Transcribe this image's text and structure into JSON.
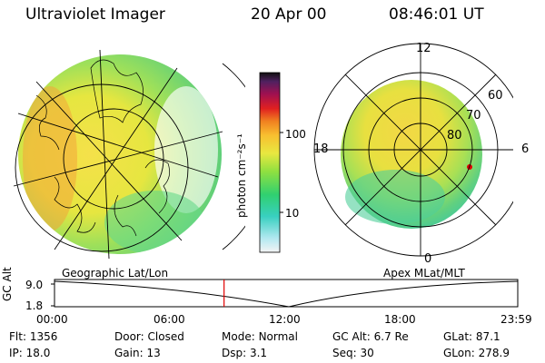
{
  "header": {
    "instrument": "Ultraviolet Imager",
    "date": "20 Apr 00",
    "time": "08:46:01 UT"
  },
  "colorbar": {
    "unit_label": "photon cm⁻²s⁻¹",
    "ticks": [
      "100",
      "10"
    ]
  },
  "polar_plot": {
    "title": "Apex MLat/MLT",
    "mlt_labels": {
      "top": "12",
      "left": "18",
      "right": "6",
      "bottom": "0"
    },
    "lat_labels": [
      "60",
      "70",
      "80"
    ]
  },
  "geo_plot": {
    "title": "Geographic Lat/Lon"
  },
  "altitude_plot": {
    "ylabel": "GC Alt",
    "yticks": [
      "9.0",
      "1.8"
    ],
    "xticks": [
      "00:00",
      "06:00",
      "12:00",
      "18:00",
      "23:59"
    ],
    "current_time_fraction": 0.366
  },
  "status": {
    "row1": [
      {
        "label": "Flt:",
        "value": "1356"
      },
      {
        "label": "Door:",
        "value": "Closed"
      },
      {
        "label": "Mode:",
        "value": "Normal"
      },
      {
        "label": "GC Alt:",
        "value": "6.7 Re"
      },
      {
        "label": "GLat:",
        "value": "87.1"
      }
    ],
    "row2": [
      {
        "label": "IP:",
        "value": "18.0"
      },
      {
        "label": "Gain:",
        "value": "13"
      },
      {
        "label": "Dsp:",
        "value": "3.1"
      },
      {
        "label": "Seq:",
        "value": "30"
      },
      {
        "label": "GLon:",
        "value": "278.9"
      }
    ]
  },
  "colors": {
    "marker": "#e00000",
    "line": "#000000"
  }
}
